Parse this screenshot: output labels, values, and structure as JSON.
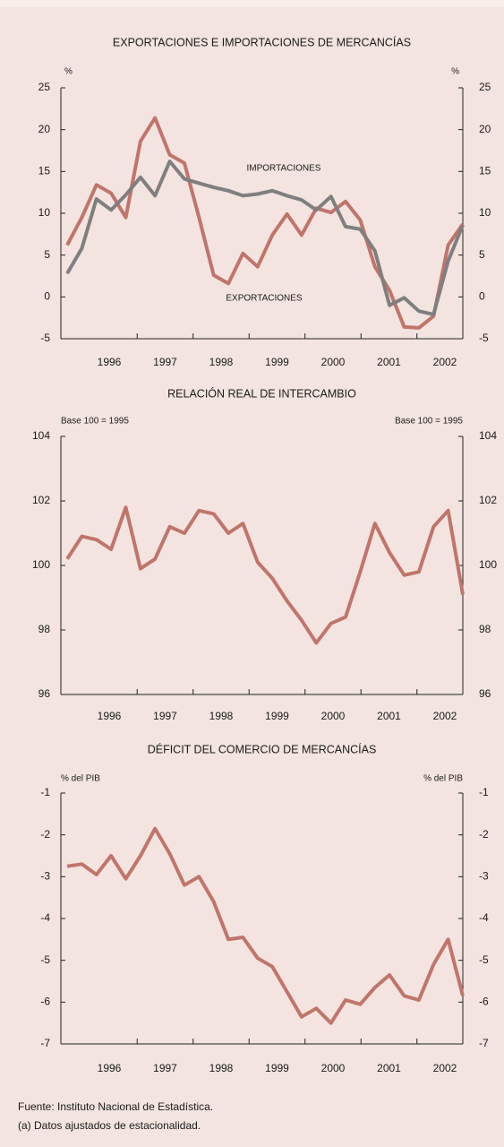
{
  "chart_data": [
    {
      "type": "line",
      "title": "EXPORTACIONES E IMPORTACIONES DE MERCANCÍAS",
      "y_unit": "%",
      "x_labels": [
        "1996",
        "1997",
        "1998",
        "1999",
        "2000",
        "2001",
        "2002"
      ],
      "ylim": [
        -5,
        25
      ],
      "yticks": [
        -5,
        0,
        5,
        10,
        15,
        20,
        25
      ],
      "series": [
        {
          "name": "EXPORTACIONES",
          "color": "#c0756a",
          "values": [
            6.2,
            9.5,
            13.4,
            12.4,
            9.5,
            18.6,
            21.4,
            17.0,
            16.0,
            9.5,
            2.6,
            1.6,
            5.2,
            3.6,
            7.4,
            9.9,
            7.4,
            10.6,
            10.1,
            11.4,
            9.2,
            3.6,
            0.8,
            -3.6,
            -3.7,
            -2.3,
            6.2,
            8.7
          ]
        },
        {
          "name": "IMPORTACIONES",
          "color": "#7f7f7f",
          "values": [
            2.8,
            5.8,
            11.7,
            10.4,
            12.2,
            14.3,
            12.1,
            16.2,
            14.1,
            13.6,
            13.1,
            12.7,
            12.1,
            12.3,
            12.7,
            12.1,
            11.6,
            10.4,
            12.0,
            8.4,
            8.1,
            5.5,
            -1.0,
            -0.1,
            -1.7,
            -2.1,
            4.3,
            8.6
          ]
        }
      ]
    },
    {
      "type": "line",
      "title": "RELACIÓN REAL DE INTERCAMBIO",
      "y_unit": "Base 100 = 1995",
      "x_labels": [
        "1996",
        "1997",
        "1998",
        "1999",
        "2000",
        "2001",
        "2002"
      ],
      "ylim": [
        96,
        104
      ],
      "yticks": [
        96,
        98,
        100,
        102,
        104
      ],
      "series": [
        {
          "color": "#c0756a",
          "values": [
            100.2,
            100.9,
            100.8,
            100.5,
            101.8,
            99.9,
            100.2,
            101.2,
            101.0,
            101.7,
            101.6,
            101.0,
            101.3,
            100.1,
            99.6,
            98.9,
            98.3,
            97.6,
            98.2,
            98.4,
            99.8,
            101.3,
            100.4,
            99.7,
            99.8,
            101.2,
            101.7,
            99.1
          ]
        }
      ]
    },
    {
      "type": "line",
      "title": "DÉFICIT DEL COMERCIO DE MERCANCÍAS",
      "y_unit": "% del PIB",
      "x_labels": [
        "1996",
        "1997",
        "1998",
        "1999",
        "2000",
        "2001",
        "2002"
      ],
      "ylim": [
        -7,
        -1
      ],
      "yticks": [
        -7,
        -6,
        -5,
        -4,
        -3,
        -2,
        -1
      ],
      "series": [
        {
          "color": "#c0756a",
          "values": [
            -2.75,
            -2.7,
            -2.95,
            -2.5,
            -3.05,
            -2.5,
            -1.85,
            -2.45,
            -3.2,
            -3.0,
            -3.6,
            -4.5,
            -4.45,
            -4.95,
            -5.15,
            -5.75,
            -6.35,
            -6.15,
            -6.5,
            -5.95,
            -6.05,
            -5.65,
            -5.35,
            -5.85,
            -5.95,
            -5.1,
            -4.5,
            -5.85
          ]
        }
      ]
    }
  ],
  "notes": [
    "Fuente: Instituto Nacional de Estadística.",
    "(a)  Datos ajustados de estacionalidad."
  ]
}
